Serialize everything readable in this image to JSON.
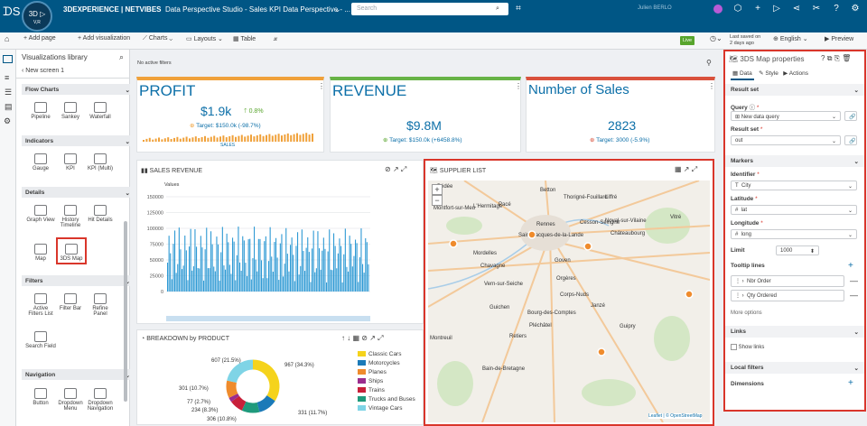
{
  "topbar": {
    "brand": "3DEXPERIENCE | NETVIBES",
    "title": "Data Perspective Studio - Sales KPI Data Perspective - ...",
    "search_placeholder": "Search",
    "user": "Julien BERLO",
    "logo_version": "V,R"
  },
  "toolbar": {
    "add_page": "+ Add page",
    "add_viz": "+ Add visualization",
    "charts": "Charts",
    "layouts": "Layouts",
    "table": "Table",
    "fx": "𝓍",
    "live": "Live",
    "last_saved_label": "Last saved on",
    "last_saved": "2 days ago",
    "language": "English",
    "preview": "Preview"
  },
  "library": {
    "title": "Visualizations library",
    "screen": "New screen 1",
    "sections": [
      {
        "name": "Flow Charts",
        "items": [
          "Pipeline",
          "Sankey",
          "Waterfall"
        ]
      },
      {
        "name": "Indicators",
        "items": [
          "Gauge",
          "KPI",
          "KPI (Multi)"
        ]
      },
      {
        "name": "Details",
        "items": [
          "Graph View",
          "History Timeline",
          "Hit Details",
          "Map",
          "3DS Map"
        ]
      },
      {
        "name": "Filters",
        "items": [
          "Active Filters List",
          "Filter Bar",
          "Refine Panel",
          "Search Field"
        ]
      },
      {
        "name": "Navigation",
        "items": [
          "Button",
          "Dropdown Menu",
          "Dropdown Navigation"
        ]
      }
    ]
  },
  "canvas": {
    "no_filters": "No active filters",
    "kpi_profit": {
      "title": "PROFIT",
      "value": "$1.9k",
      "delta": "0.8%",
      "target": "Target: $150.0k (-98.7%)",
      "series_label": "SALES"
    },
    "kpi_revenue": {
      "title": "REVENUE",
      "value": "$9.8M",
      "target": "Target: $150.0k (+6458.8%)"
    },
    "kpi_sales": {
      "title": "Number of Sales",
      "value": "2823",
      "target": "Target: 3000 (-5.9%)"
    },
    "sales_revenue": {
      "title": "SALES REVENUE",
      "legend": "Values",
      "ticks": [
        "150000",
        "125000",
        "100000",
        "75000",
        "50000",
        "25000",
        "0"
      ]
    },
    "breakdown": {
      "title": "BREAKDOWN by PRODUCT",
      "labels": [
        "967 (34.3%)",
        "607 (21.5%)",
        "301 (10.7%)",
        "77 (2.7%)",
        "234 (8.3%)",
        "306 (10.8%)",
        "331 (11.7%)"
      ],
      "legend": [
        "Classic Cars",
        "Motorcycles",
        "Planes",
        "Ships",
        "Trains",
        "Trucks and Buses",
        "Vintage Cars"
      ]
    },
    "map": {
      "title": "SUPPLIER LIST",
      "attribution": "Leaflet | © OpenStreetMap",
      "places": [
        "Bédée",
        "Montfort-sur-Meu",
        "L'Hermitage",
        "Pacé",
        "Betton",
        "Thorigné-Fouillard",
        "Liffré",
        "Saint-Jacques-de-la-Lande",
        "Rennes",
        "Cesson-Sévigné",
        "Noyal-sur-Vilaine",
        "Châteaubourg",
        "Vitré",
        "Mordelles",
        "Chavagne",
        "Vern-sur-Seiche",
        "Goven",
        "Orgères",
        "Corps-Nuds",
        "Janzé",
        "Guichen",
        "Bourg-des-Comptes",
        "Pléchâtel",
        "Retiers",
        "Guipry",
        "Bain-de-Bretagne",
        "Montreuil"
      ]
    }
  },
  "props": {
    "title": "3DS Map properties",
    "tabs": [
      "Data",
      "Style",
      "Actions"
    ],
    "result_set": "Result set",
    "query_label": "Query",
    "query_value": "New data query",
    "rs_label": "Result set",
    "rs_value": "out",
    "markers": "Markers",
    "identifier": "Identifier",
    "id_value": "City",
    "latitude": "Latitude",
    "lat_value": "lat",
    "longitude": "Longitude",
    "long_value": "long",
    "limit": "Limit",
    "limit_value": "1000",
    "tooltip": "Tooltip lines",
    "tip1": "Nbr Order",
    "tip2": "Qty Ordered",
    "more": "More options",
    "links": "Links",
    "show_links": "Show links",
    "local_filters": "Local filters",
    "dimensions": "Dimensions"
  },
  "colors": {
    "accent": "#005685",
    "profit": "#f0a13a",
    "revenue": "#67b346",
    "sales": "#d9513c",
    "bar": "#2f9ad4",
    "red": "#d9362b"
  }
}
